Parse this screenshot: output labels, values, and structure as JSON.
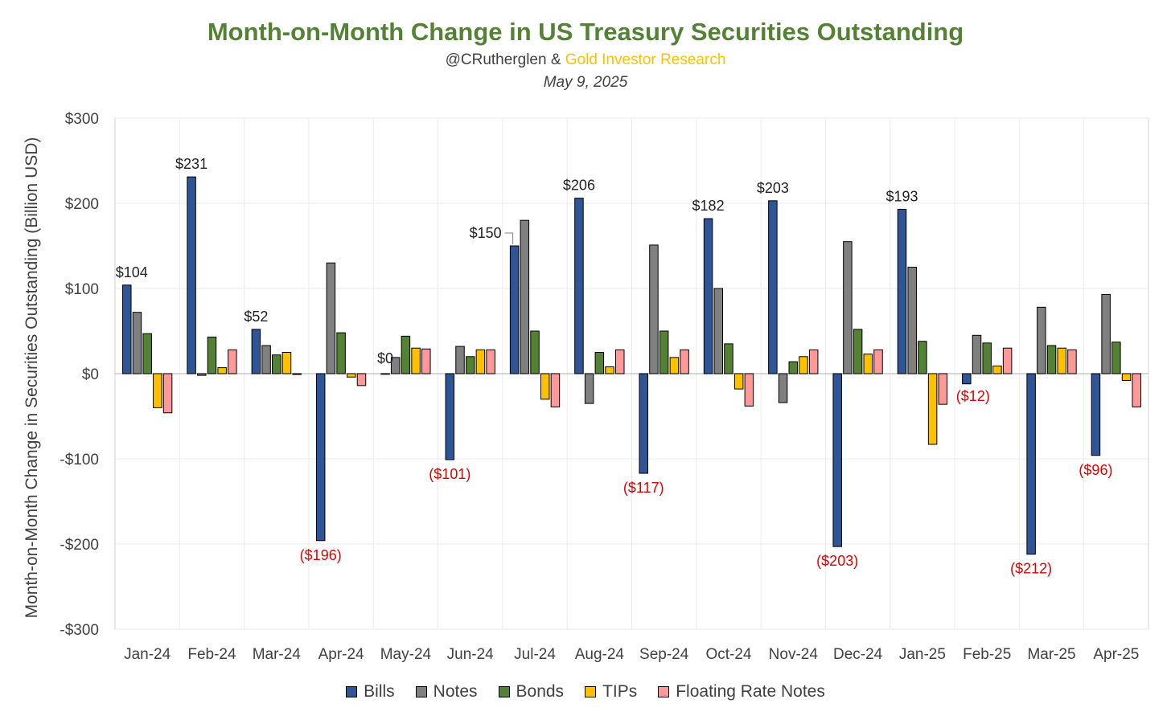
{
  "chart_data": {
    "type": "bar",
    "title": "Month-on-Month Change in US Treasury Securities Outstanding",
    "subtitle_prefix": "@CRutherglen & ",
    "subtitle_highlight": "Gold Investor Research",
    "date": "May 9, 2025",
    "ylabel": "Month-on-Month Change in Securities Outstanding (Billion USD)",
    "ylim": [
      -300,
      300
    ],
    "yticks": [
      300,
      200,
      100,
      0,
      -100,
      -200,
      -300
    ],
    "ytick_labels": [
      "$300",
      "$200",
      "$100",
      "$0",
      "-$100",
      "-$200",
      "-$300"
    ],
    "grid": true,
    "legend_position": "bottom",
    "categories": [
      "Jan-24",
      "Feb-24",
      "Mar-24",
      "Apr-24",
      "May-24",
      "Jun-24",
      "Jul-24",
      "Aug-24",
      "Sep-24",
      "Oct-24",
      "Nov-24",
      "Dec-24",
      "Jan-25",
      "Feb-25",
      "Mar-25",
      "Apr-25"
    ],
    "series": [
      {
        "name": "Bills",
        "color": "#2F5597",
        "values": [
          104,
          231,
          52,
          -196,
          0,
          -101,
          150,
          206,
          -117,
          182,
          203,
          -203,
          193,
          -12,
          -212,
          -96
        ]
      },
      {
        "name": "Notes",
        "color": "#808080",
        "values": [
          72,
          -2,
          33,
          130,
          19,
          32,
          180,
          -35,
          151,
          100,
          -34,
          155,
          125,
          45,
          78,
          93
        ]
      },
      {
        "name": "Bonds",
        "color": "#548235",
        "values": [
          47,
          43,
          22,
          48,
          44,
          20,
          50,
          25,
          50,
          35,
          14,
          52,
          38,
          36,
          33,
          37
        ]
      },
      {
        "name": "TIPs",
        "color": "#FFC000",
        "values": [
          -40,
          7,
          25,
          -4,
          30,
          28,
          -30,
          8,
          19,
          -18,
          20,
          23,
          -83,
          9,
          30,
          -8
        ]
      },
      {
        "name": "Floating Rate Notes",
        "color": "#FF9999",
        "values": [
          -46,
          28,
          -1,
          -14,
          29,
          28,
          -39,
          28,
          28,
          -38,
          28,
          28,
          -36,
          30,
          28,
          -39
        ]
      }
    ],
    "data_labels": [
      {
        "category": "Jan-24",
        "text": "$104"
      },
      {
        "category": "Feb-24",
        "text": "$231"
      },
      {
        "category": "Mar-24",
        "text": "$52"
      },
      {
        "category": "Apr-24",
        "text": "($196)"
      },
      {
        "category": "May-24",
        "text": "$0"
      },
      {
        "category": "Jun-24",
        "text": "($101)"
      },
      {
        "category": "Jul-24",
        "text": "$150"
      },
      {
        "category": "Aug-24",
        "text": "$206"
      },
      {
        "category": "Sep-24",
        "text": "($117)"
      },
      {
        "category": "Oct-24",
        "text": "$182"
      },
      {
        "category": "Nov-24",
        "text": "$203"
      },
      {
        "category": "Dec-24",
        "text": "($203)"
      },
      {
        "category": "Jan-25",
        "text": "$193"
      },
      {
        "category": "Feb-25",
        "text": "($12)"
      },
      {
        "category": "Mar-25",
        "text": "($212)"
      },
      {
        "category": "Apr-25",
        "text": "($96)"
      }
    ],
    "negative_label_color": "#E00000"
  }
}
